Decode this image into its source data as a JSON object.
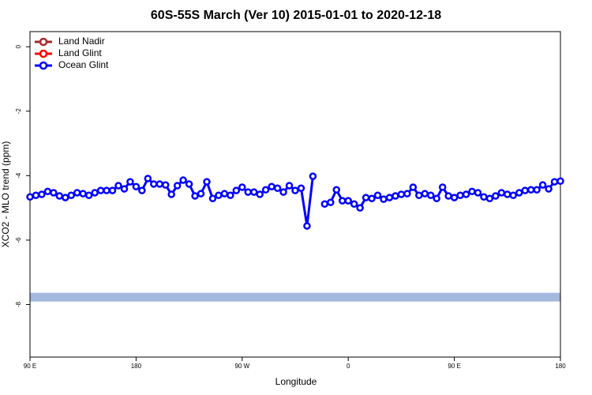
{
  "chart_data": {
    "type": "line",
    "title": "60S-55S March (Ver 10)   2015-01-01 to 2020-12-18",
    "x_label": "Longitude",
    "y_label": "XCO2 - MLO trend (ppm)",
    "x": [
      90,
      95,
      100,
      105,
      110,
      115,
      120,
      125,
      130,
      135,
      140,
      145,
      150,
      155,
      160,
      165,
      170,
      175,
      180,
      185,
      190,
      195,
      200,
      205,
      210,
      215,
      220,
      225,
      230,
      235,
      240,
      245,
      250,
      255,
      260,
      265,
      270,
      275,
      280,
      285,
      290,
      295,
      300,
      305,
      310,
      315,
      320,
      325,
      330,
      335,
      340,
      345,
      350,
      355,
      360,
      365,
      370,
      375,
      380,
      385,
      390,
      395,
      400,
      405,
      410,
      415,
      420,
      425,
      430,
      435,
      440,
      445,
      450,
      455,
      460,
      465,
      470,
      475,
      480,
      485,
      490,
      495,
      500,
      505,
      510,
      515,
      520,
      525,
      530,
      535,
      540
    ],
    "xlim": [
      90,
      540
    ],
    "xticks": [
      {
        "value": 90,
        "label": "90 E"
      },
      180,
      {
        "value": 270,
        "label": "90 W"
      },
      {
        "value": 360,
        "label": "0"
      },
      {
        "value": 450,
        "label": "90 E"
      },
      180.0001
    ],
    "ylim": [
      -9.63,
      0.47
    ],
    "yticks": [
      0,
      -2,
      -4,
      -6,
      -8
    ],
    "legend": "top-left",
    "band": {
      "value": -7.77,
      "color": "#a3b9de"
    },
    "series": [
      {
        "name": "Land Nadir",
        "color": "#a52a2a",
        "values": [
          null,
          null,
          null,
          null,
          null,
          null,
          null,
          null,
          null,
          null,
          null,
          null,
          null,
          null,
          null,
          null,
          null,
          null,
          null,
          null,
          null,
          null,
          null,
          null,
          null,
          null,
          null,
          null,
          null,
          null,
          null,
          null,
          null,
          null,
          null,
          null,
          null,
          null,
          null,
          null,
          null,
          null,
          null,
          null,
          null,
          null,
          null,
          null,
          null,
          null,
          null,
          null,
          null,
          null,
          null,
          null,
          null,
          null,
          null,
          null,
          null,
          null,
          null,
          null,
          null,
          null,
          null,
          null,
          null,
          null,
          null,
          null,
          null,
          null,
          null,
          null,
          null,
          null,
          null,
          null,
          null,
          null,
          null,
          null,
          null,
          null,
          null,
          null,
          null,
          null,
          null
        ]
      },
      {
        "name": "Land Glint",
        "color": "#ff0000",
        "values": [
          null,
          null,
          null,
          null,
          null,
          null,
          null,
          null,
          null,
          null,
          null,
          null,
          null,
          null,
          null,
          null,
          null,
          null,
          null,
          null,
          null,
          null,
          null,
          null,
          null,
          null,
          null,
          null,
          null,
          null,
          null,
          null,
          null,
          null,
          null,
          null,
          null,
          null,
          null,
          null,
          null,
          null,
          null,
          null,
          null,
          null,
          null,
          null,
          null,
          null,
          null,
          null,
          null,
          null,
          null,
          null,
          null,
          null,
          null,
          null,
          null,
          null,
          null,
          null,
          null,
          null,
          null,
          null,
          null,
          null,
          null,
          null,
          null,
          null,
          null,
          null,
          null,
          null,
          null,
          null,
          null,
          null,
          null,
          null,
          null,
          null,
          null,
          null,
          null,
          null,
          null
        ]
      },
      {
        "name": "Ocean Glint",
        "color": "#0000ff",
        "values": [
          -4.66,
          -4.61,
          -4.58,
          -4.49,
          -4.53,
          -4.63,
          -4.68,
          -4.61,
          -4.53,
          -4.56,
          -4.61,
          -4.53,
          -4.46,
          -4.46,
          -4.46,
          -4.31,
          -4.41,
          -4.19,
          -4.34,
          -4.46,
          -4.09,
          -4.26,
          -4.26,
          -4.29,
          -4.58,
          -4.31,
          -4.14,
          -4.26,
          -4.63,
          -4.56,
          -4.19,
          -4.71,
          -4.61,
          -4.56,
          -4.61,
          -4.46,
          -4.36,
          -4.51,
          -4.51,
          -4.58,
          -4.44,
          -4.34,
          -4.39,
          -4.51,
          -4.31,
          -4.46,
          -4.39,
          -5.56,
          -4.02,
          null,
          -4.88,
          -4.83,
          -4.44,
          -4.78,
          -4.78,
          -4.88,
          -5.0,
          -4.68,
          -4.71,
          -4.61,
          -4.73,
          -4.68,
          -4.63,
          -4.58,
          -4.56,
          -4.36,
          -4.61,
          -4.56,
          -4.61,
          -4.71,
          -4.36,
          -4.63,
          -4.68,
          -4.61,
          -4.58,
          -4.49,
          -4.53,
          -4.66,
          -4.71,
          -4.63,
          -4.53,
          -4.58,
          -4.61,
          -4.53,
          -4.46,
          -4.44,
          -4.44,
          -4.29,
          -4.41,
          -4.19,
          -4.17
        ]
      }
    ]
  }
}
